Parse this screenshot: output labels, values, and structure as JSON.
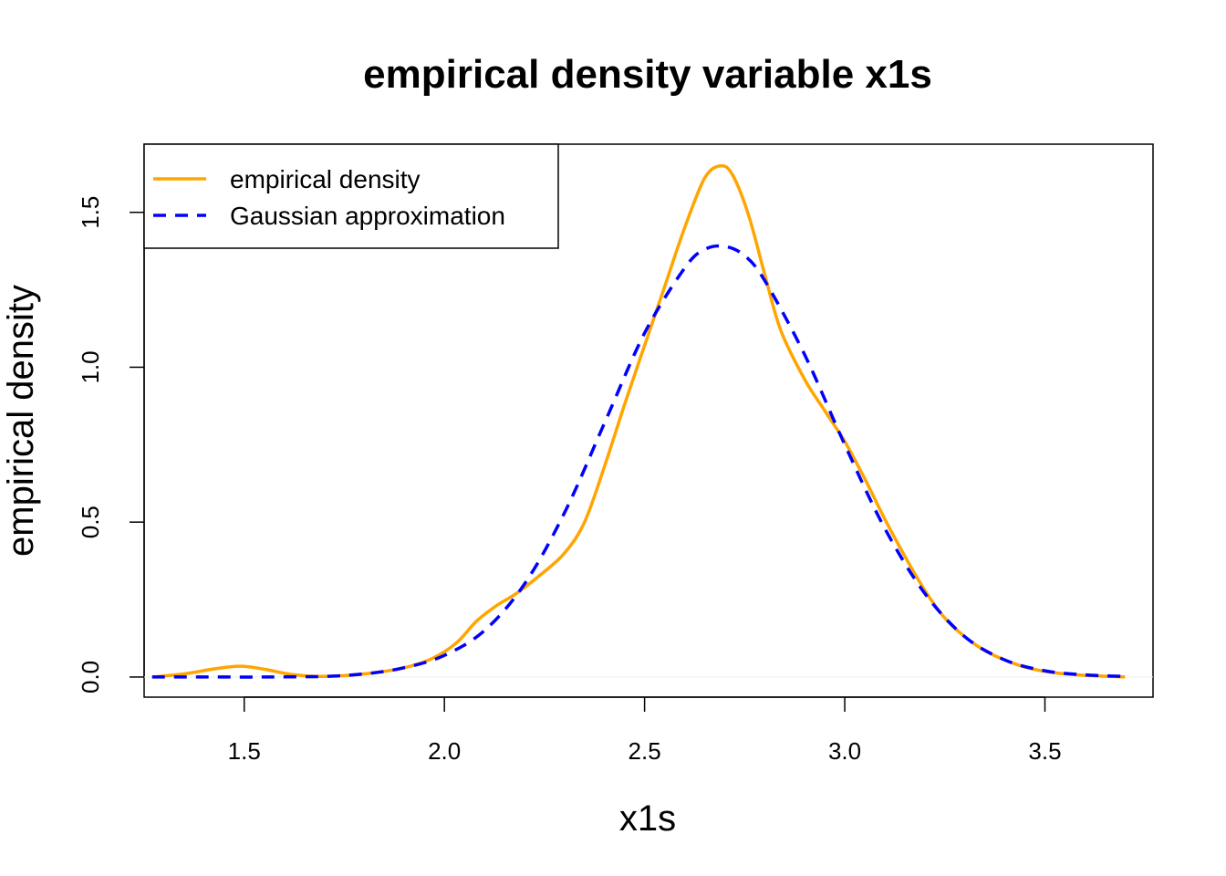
{
  "chart_data": {
    "type": "line",
    "title": "empirical density variable x1s",
    "xlabel": "x1s",
    "ylabel": "empirical density",
    "xlim": [
      1.25,
      3.77
    ],
    "ylim": [
      -0.065,
      1.72
    ],
    "x_ticks": [
      1.5,
      2.0,
      2.5,
      3.0,
      3.5
    ],
    "x_tick_labels": [
      "1.5",
      "2.0",
      "2.5",
      "3.0",
      "3.5"
    ],
    "y_ticks": [
      0.0,
      0.5,
      1.0,
      1.5
    ],
    "y_tick_labels": [
      "0.0",
      "0.5",
      "1.0",
      "1.5"
    ],
    "grid": false,
    "legend": {
      "position": "top-left"
    },
    "series": [
      {
        "name": "empirical density",
        "color": "#FFA500",
        "style": "solid",
        "x": [
          1.27,
          1.35,
          1.42,
          1.49,
          1.55,
          1.62,
          1.7,
          1.8,
          1.9,
          1.97,
          2.03,
          2.08,
          2.13,
          2.18,
          2.24,
          2.3,
          2.35,
          2.4,
          2.45,
          2.5,
          2.55,
          2.6,
          2.65,
          2.69,
          2.72,
          2.76,
          2.8,
          2.84,
          2.9,
          2.95,
          3.0,
          3.05,
          3.1,
          3.15,
          3.2,
          3.25,
          3.3,
          3.35,
          3.4,
          3.45,
          3.5,
          3.55,
          3.62,
          3.7
        ],
        "y": [
          0.0,
          0.01,
          0.025,
          0.035,
          0.025,
          0.008,
          0.002,
          0.01,
          0.03,
          0.06,
          0.11,
          0.18,
          0.23,
          0.27,
          0.33,
          0.4,
          0.5,
          0.68,
          0.88,
          1.07,
          1.26,
          1.45,
          1.61,
          1.65,
          1.62,
          1.49,
          1.3,
          1.12,
          0.96,
          0.86,
          0.76,
          0.64,
          0.51,
          0.39,
          0.28,
          0.19,
          0.13,
          0.085,
          0.055,
          0.032,
          0.018,
          0.01,
          0.004,
          0.0
        ]
      },
      {
        "name": "Gaussian approximation",
        "color": "#0000FF",
        "style": "dashed",
        "x": [
          1.27,
          1.4,
          1.55,
          1.7,
          1.8,
          1.9,
          2.0,
          2.1,
          2.2,
          2.3,
          2.4,
          2.5,
          2.6,
          2.65,
          2.7,
          2.75,
          2.8,
          2.9,
          3.0,
          3.1,
          3.2,
          3.3,
          3.4,
          3.5,
          3.6,
          3.7
        ],
        "y": [
          0.0,
          0.0,
          0.0,
          0.002,
          0.01,
          0.03,
          0.07,
          0.15,
          0.3,
          0.53,
          0.82,
          1.11,
          1.32,
          1.38,
          1.39,
          1.36,
          1.28,
          1.04,
          0.75,
          0.48,
          0.27,
          0.13,
          0.055,
          0.02,
          0.007,
          0.002
        ]
      }
    ]
  }
}
